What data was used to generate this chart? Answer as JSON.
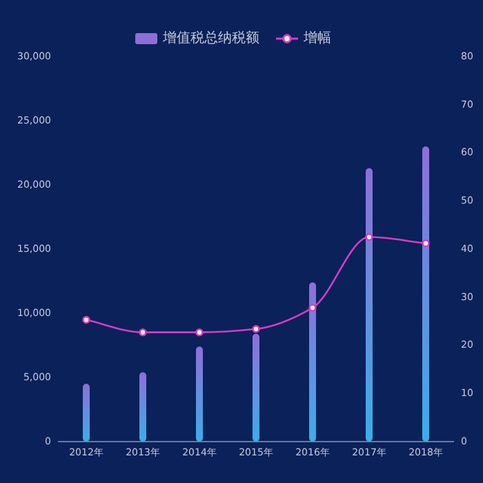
{
  "chart_data": {
    "type": "bar",
    "categories": [
      "2012年",
      "2013年",
      "2014年",
      "2015年",
      "2016年",
      "2017年",
      "2018年"
    ],
    "series": [
      {
        "name": "增值税总纳税额",
        "color": "#8e6fd8",
        "values": [
          4500,
          5400,
          7400,
          8400,
          12400,
          21300,
          23000
        ]
      },
      {
        "name": "增幅",
        "type": "line",
        "axis": "y2",
        "color": "#d63cc6",
        "marker": "circle",
        "values": [
          25.3,
          22.7,
          22.7,
          23.4,
          27.8,
          42.5,
          41.2
        ]
      }
    ],
    "ylim": [
      0,
      30000
    ],
    "yticks": [
      0,
      {
        "value": 5000,
        "label": "5,000"
      },
      {
        "value": 10000,
        "label": "10,000"
      },
      {
        "value": 15000,
        "label": "15,000"
      },
      {
        "value": 20000,
        "label": "20,000"
      },
      {
        "value": 25000,
        "label": "25,000"
      },
      {
        "value": 30000,
        "label": "30,000"
      }
    ],
    "y2lim": [
      0,
      80
    ],
    "y2ticks": [
      0,
      10,
      20,
      30,
      40,
      50,
      60,
      70,
      80
    ],
    "grid": false,
    "legend": "top"
  }
}
